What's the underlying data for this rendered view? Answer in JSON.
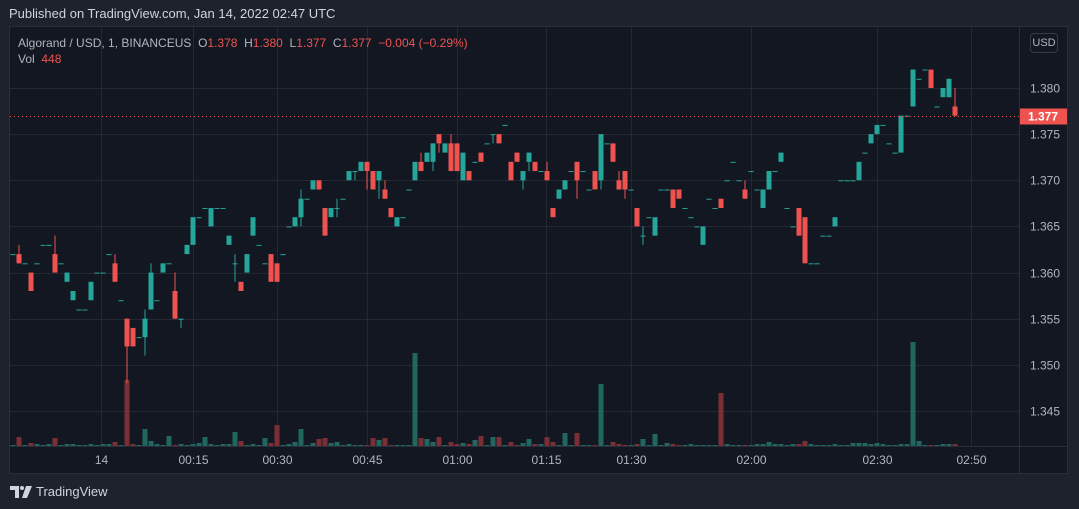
{
  "header": {
    "published": "Published on TradingView.com, Jan 14, 2022 02:47 UTC"
  },
  "legend": {
    "symbol": "Algorand / USD, 1, BINANCEUS",
    "o_label": "O",
    "o": "1.378",
    "h_label": "H",
    "h": "1.380",
    "l_label": "L",
    "l": "1.377",
    "c_label": "C",
    "c": "1.377",
    "change": "−0.004 (−0.29%)",
    "vol_label": "Vol",
    "vol": "448"
  },
  "price_axis": {
    "currency": "USD",
    "current_price": "1.377"
  },
  "footer": {
    "brand": "TradingView"
  },
  "colors": {
    "up": "#26a69a",
    "down": "#ef5350",
    "up_vol": "#22675f",
    "down_vol": "#7b2f35",
    "grid": "#242832",
    "text": "#b2b5be"
  },
  "chart_data": {
    "type": "candlestick",
    "title": "Algorand / USD, 1, BINANCEUS",
    "ylim": [
      1.3405,
      1.3835
    ],
    "y_ticks": [
      "1.380",
      "1.375",
      "1.370",
      "1.365",
      "1.360",
      "1.355",
      "1.350",
      "1.345"
    ],
    "x_ticks": [
      {
        "label": "14",
        "bar": 14.67
      },
      {
        "label": "00:15",
        "bar": 30
      },
      {
        "label": "00:30",
        "bar": 44
      },
      {
        "label": "00:45",
        "bar": 59
      },
      {
        "label": "01:00",
        "bar": 74
      },
      {
        "label": "01:15",
        "bar": 88.8
      },
      {
        "label": "01:30",
        "bar": 103
      },
      {
        "label": "02:00",
        "bar": 123
      },
      {
        "label": "02:30",
        "bar": 144
      },
      {
        "label": "02:50",
        "bar": 159.67
      }
    ],
    "ohlc": [
      [
        1.362,
        1.362,
        1.362,
        1.362
      ],
      [
        1.362,
        1.363,
        1.361,
        1.361
      ],
      [
        1.361,
        1.361,
        1.361,
        1.361
      ],
      [
        1.36,
        1.36,
        1.358,
        1.358
      ],
      [
        1.361,
        1.361,
        1.361,
        1.361
      ],
      [
        1.363,
        1.363,
        1.363,
        1.363
      ],
      [
        1.363,
        1.363,
        1.363,
        1.363
      ],
      [
        1.362,
        1.364,
        1.36,
        1.36
      ],
      [
        1.361,
        1.361,
        1.361,
        1.361
      ],
      [
        1.359,
        1.36,
        1.359,
        1.36
      ],
      [
        1.357,
        1.358,
        1.357,
        1.358
      ],
      [
        1.356,
        1.356,
        1.356,
        1.356
      ],
      [
        1.356,
        1.356,
        1.356,
        1.356
      ],
      [
        1.357,
        1.359,
        1.357,
        1.359
      ],
      [
        1.36,
        1.36,
        1.36,
        1.36
      ],
      [
        1.36,
        1.36,
        1.36,
        1.36
      ],
      [
        1.362,
        1.362,
        1.362,
        1.362
      ],
      [
        1.361,
        1.362,
        1.359,
        1.359
      ],
      [
        1.357,
        1.357,
        1.357,
        1.357
      ],
      [
        1.355,
        1.355,
        1.348,
        1.352
      ],
      [
        1.354,
        1.354,
        1.352,
        1.352
      ],
      [
        1.353,
        1.353,
        1.353,
        1.353
      ],
      [
        1.353,
        1.356,
        1.351,
        1.355
      ],
      [
        1.356,
        1.361,
        1.356,
        1.36
      ],
      [
        1.357,
        1.357,
        1.357,
        1.357
      ],
      [
        1.36,
        1.361,
        1.36,
        1.361
      ],
      [
        1.361,
        1.361,
        1.361,
        1.361
      ],
      [
        1.358,
        1.36,
        1.355,
        1.355
      ],
      [
        1.355,
        1.355,
        1.354,
        1.355
      ],
      [
        1.362,
        1.363,
        1.362,
        1.363
      ],
      [
        1.363,
        1.366,
        1.363,
        1.366
      ],
      [
        1.366,
        1.366,
        1.366,
        1.366
      ],
      [
        1.367,
        1.367,
        1.367,
        1.367
      ],
      [
        1.365,
        1.367,
        1.365,
        1.367
      ],
      [
        1.367,
        1.367,
        1.367,
        1.367
      ],
      [
        1.367,
        1.367,
        1.367,
        1.367
      ],
      [
        1.363,
        1.364,
        1.363,
        1.364
      ],
      [
        1.361,
        1.362,
        1.359,
        1.361
      ],
      [
        1.359,
        1.359,
        1.358,
        1.358
      ],
      [
        1.36,
        1.362,
        1.36,
        1.362
      ],
      [
        1.364,
        1.366,
        1.364,
        1.366
      ],
      [
        1.363,
        1.363,
        1.363,
        1.363
      ],
      [
        1.361,
        1.361,
        1.361,
        1.361
      ],
      [
        1.362,
        1.362,
        1.359,
        1.359
      ],
      [
        1.361,
        1.361,
        1.359,
        1.359
      ],
      [
        1.362,
        1.362,
        1.362,
        1.362
      ],
      [
        1.365,
        1.365,
        1.365,
        1.365
      ],
      [
        1.365,
        1.366,
        1.365,
        1.366
      ],
      [
        1.366,
        1.369,
        1.365,
        1.368
      ],
      [
        1.368,
        1.368,
        1.368,
        1.368
      ],
      [
        1.369,
        1.37,
        1.369,
        1.37
      ],
      [
        1.37,
        1.37,
        1.369,
        1.369
      ],
      [
        1.367,
        1.367,
        1.364,
        1.364
      ],
      [
        1.366,
        1.367,
        1.366,
        1.367
      ],
      [
        1.367,
        1.368,
        1.366,
        1.367
      ],
      [
        1.368,
        1.368,
        1.368,
        1.368
      ],
      [
        1.37,
        1.371,
        1.37,
        1.371
      ],
      [
        1.371,
        1.371,
        1.37,
        1.371
      ],
      [
        1.371,
        1.372,
        1.371,
        1.372
      ],
      [
        1.372,
        1.372,
        1.369,
        1.371
      ],
      [
        1.371,
        1.371,
        1.369,
        1.369
      ],
      [
        1.37,
        1.371,
        1.368,
        1.371
      ],
      [
        1.369,
        1.37,
        1.368,
        1.368
      ],
      [
        1.367,
        1.367,
        1.366,
        1.366
      ],
      [
        1.365,
        1.366,
        1.365,
        1.366
      ],
      [
        1.366,
        1.366,
        1.366,
        1.366
      ],
      [
        1.369,
        1.369,
        1.369,
        1.369
      ],
      [
        1.37,
        1.372,
        1.37,
        1.372
      ],
      [
        1.372,
        1.373,
        1.371,
        1.371
      ],
      [
        1.372,
        1.373,
        1.372,
        1.373
      ],
      [
        1.372,
        1.374,
        1.371,
        1.374
      ],
      [
        1.375,
        1.375,
        1.373,
        1.374
      ],
      [
        1.373,
        1.374,
        1.373,
        1.374
      ],
      [
        1.374,
        1.375,
        1.371,
        1.371
      ],
      [
        1.374,
        1.374,
        1.371,
        1.371
      ],
      [
        1.37,
        1.373,
        1.37,
        1.373
      ],
      [
        1.371,
        1.371,
        1.37,
        1.37
      ],
      [
        1.372,
        1.372,
        1.372,
        1.372
      ],
      [
        1.373,
        1.373,
        1.372,
        1.372
      ],
      [
        1.374,
        1.374,
        1.374,
        1.374
      ],
      [
        1.375,
        1.375,
        1.374,
        1.375
      ],
      [
        1.375,
        1.375,
        1.374,
        1.374
      ],
      [
        1.376,
        1.376,
        1.376,
        1.376
      ],
      [
        1.372,
        1.372,
        1.37,
        1.37
      ],
      [
        1.373,
        1.373,
        1.372,
        1.372
      ],
      [
        1.37,
        1.371,
        1.369,
        1.371
      ],
      [
        1.372,
        1.373,
        1.371,
        1.373
      ],
      [
        1.372,
        1.372,
        1.371,
        1.371
      ],
      [
        1.371,
        1.371,
        1.371,
        1.371
      ],
      [
        1.371,
        1.372,
        1.37,
        1.37
      ],
      [
        1.367,
        1.367,
        1.366,
        1.366
      ],
      [
        1.368,
        1.369,
        1.368,
        1.369
      ],
      [
        1.369,
        1.37,
        1.369,
        1.37
      ],
      [
        1.371,
        1.371,
        1.371,
        1.371
      ],
      [
        1.372,
        1.372,
        1.368,
        1.37
      ],
      [
        1.371,
        1.371,
        1.371,
        1.371
      ],
      [
        1.369,
        1.369,
        1.369,
        1.369
      ],
      [
        1.371,
        1.371,
        1.369,
        1.369
      ],
      [
        1.37,
        1.375,
        1.369,
        1.375
      ],
      [
        1.374,
        1.374,
        1.374,
        1.374
      ],
      [
        1.374,
        1.374,
        1.372,
        1.372
      ],
      [
        1.37,
        1.371,
        1.369,
        1.369
      ],
      [
        1.371,
        1.371,
        1.368,
        1.369
      ],
      [
        1.369,
        1.369,
        1.369,
        1.369
      ],
      [
        1.367,
        1.367,
        1.365,
        1.365
      ],
      [
        1.364,
        1.365,
        1.363,
        1.364
      ],
      [
        1.366,
        1.366,
        1.366,
        1.366
      ],
      [
        1.364,
        1.366,
        1.364,
        1.366
      ],
      [
        1.369,
        1.369,
        1.369,
        1.369
      ],
      [
        1.369,
        1.369,
        1.369,
        1.369
      ],
      [
        1.369,
        1.369,
        1.367,
        1.367
      ],
      [
        1.369,
        1.369,
        1.368,
        1.368
      ],
      [
        1.367,
        1.367,
        1.367,
        1.367
      ],
      [
        1.366,
        1.366,
        1.366,
        1.366
      ],
      [
        1.365,
        1.365,
        1.365,
        1.365
      ],
      [
        1.363,
        1.365,
        1.363,
        1.365
      ],
      [
        1.368,
        1.368,
        1.368,
        1.368
      ],
      [
        1.367,
        1.367,
        1.367,
        1.367
      ],
      [
        1.368,
        1.368,
        1.367,
        1.367
      ],
      [
        1.37,
        1.37,
        1.37,
        1.37
      ],
      [
        1.372,
        1.372,
        1.372,
        1.372
      ],
      [
        1.37,
        1.37,
        1.37,
        1.37
      ],
      [
        1.369,
        1.37,
        1.368,
        1.368
      ],
      [
        1.371,
        1.371,
        1.371,
        1.371
      ],
      [
        1.369,
        1.369,
        1.369,
        1.369
      ],
      [
        1.367,
        1.369,
        1.367,
        1.369
      ],
      [
        1.369,
        1.371,
        1.369,
        1.371
      ],
      [
        1.371,
        1.371,
        1.371,
        1.371
      ],
      [
        1.372,
        1.373,
        1.372,
        1.373
      ],
      [
        1.367,
        1.367,
        1.367,
        1.367
      ],
      [
        1.365,
        1.365,
        1.365,
        1.365
      ],
      [
        1.367,
        1.367,
        1.364,
        1.364
      ],
      [
        1.366,
        1.366,
        1.361,
        1.361
      ],
      [
        1.361,
        1.361,
        1.361,
        1.361
      ],
      [
        1.361,
        1.361,
        1.361,
        1.361
      ],
      [
        1.364,
        1.364,
        1.364,
        1.364
      ],
      [
        1.364,
        1.364,
        1.364,
        1.364
      ],
      [
        1.365,
        1.366,
        1.365,
        1.366
      ],
      [
        1.37,
        1.37,
        1.37,
        1.37
      ],
      [
        1.37,
        1.37,
        1.37,
        1.37
      ],
      [
        1.37,
        1.37,
        1.37,
        1.37
      ],
      [
        1.37,
        1.372,
        1.37,
        1.372
      ],
      [
        1.373,
        1.373,
        1.373,
        1.373
      ],
      [
        1.374,
        1.375,
        1.374,
        1.375
      ],
      [
        1.375,
        1.376,
        1.375,
        1.376
      ],
      [
        1.376,
        1.376,
        1.376,
        1.376
      ],
      [
        1.374,
        1.374,
        1.374,
        1.374
      ],
      [
        1.373,
        1.373,
        1.373,
        1.373
      ],
      [
        1.373,
        1.377,
        1.373,
        1.377
      ],
      [
        1.377,
        1.377,
        1.377,
        1.377
      ],
      [
        1.378,
        1.382,
        1.378,
        1.382
      ],
      [
        1.381,
        1.381,
        1.381,
        1.381
      ],
      [
        1.382,
        1.382,
        1.382,
        1.382
      ],
      [
        1.382,
        1.382,
        1.38,
        1.38
      ],
      [
        1.378,
        1.378,
        1.378,
        1.378
      ],
      [
        1.379,
        1.38,
        1.379,
        1.38
      ],
      [
        1.379,
        1.381,
        1.379,
        1.381
      ],
      [
        1.378,
        1.38,
        1.377,
        1.377
      ]
    ],
    "volume": [
      224,
      2016,
      224,
      672,
      448,
      224,
      448,
      1792,
      224,
      448,
      448,
      224,
      224,
      448,
      224,
      448,
      448,
      896,
      224,
      14784,
      448,
      224,
      3808,
      1120,
      448,
      224,
      2240,
      224,
      448,
      224,
      448,
      672,
      2016,
      448,
      224,
      448,
      448,
      3136,
      1120,
      224,
      448,
      224,
      1792,
      672,
      4704,
      224,
      448,
      896,
      3808,
      224,
      672,
      1568,
      1792,
      672,
      896,
      224,
      448,
      224,
      224,
      224,
      1792,
      1344,
      1792,
      224,
      224,
      224,
      224,
      20832,
      1792,
      1568,
      896,
      2016,
      224,
      896,
      448,
      672,
      448,
      1344,
      2240,
      224,
      2016,
      2016,
      224,
      896,
      224,
      672,
      1568,
      448,
      448,
      2016,
      896,
      224,
      2912,
      224,
      2912,
      224,
      224,
      224,
      13888,
      224,
      896,
      448,
      224,
      224,
      448,
      1568,
      224,
      2688,
      224,
      672,
      448,
      224,
      224,
      448,
      224,
      224,
      224,
      224,
      11872,
      448,
      224,
      224,
      224,
      224,
      448,
      448,
      896,
      448,
      448,
      224,
      448,
      448,
      1120,
      448,
      224,
      224,
      224,
      448,
      224,
      224,
      672,
      672,
      672,
      448,
      672,
      448,
      224,
      224,
      448,
      448,
      23296,
      1120,
      224,
      224,
      224,
      448,
      448,
      448
    ]
  }
}
